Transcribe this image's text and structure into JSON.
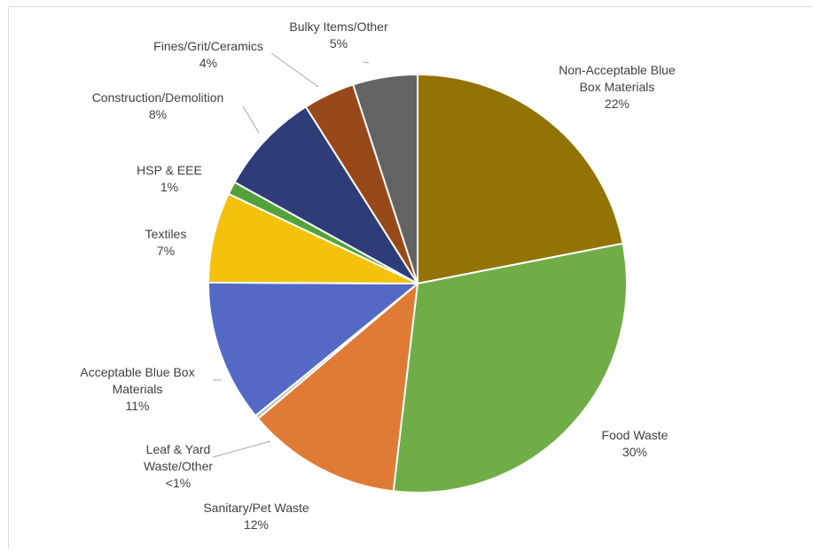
{
  "chart_data": {
    "type": "pie",
    "title": "",
    "slices": [
      {
        "name": "Non-Acceptable Blue Box Materials",
        "label_lines": [
          "Non-Acceptable Blue",
          "Box Materials"
        ],
        "pct_label": "22%",
        "value": 22,
        "color": "#937305"
      },
      {
        "name": "Food Waste",
        "label_lines": [
          "Food Waste"
        ],
        "pct_label": "30%",
        "value": 30,
        "color": "#70ad47"
      },
      {
        "name": "Sanitary/Pet Waste",
        "label_lines": [
          "Sanitary/Pet Waste"
        ],
        "pct_label": "12%",
        "value": 12,
        "color": "#e07b35"
      },
      {
        "name": "Leaf & Yard Waste/Other",
        "label_lines": [
          "Leaf & Yard",
          "Waste/Other"
        ],
        "pct_label": "<1%",
        "value": 0.3,
        "color": "#bfbfbf"
      },
      {
        "name": "Acceptable Blue Box Materials",
        "label_lines": [
          "Acceptable Blue Box",
          "Materials"
        ],
        "pct_label": "11%",
        "value": 11,
        "color": "#5469c6"
      },
      {
        "name": "Textiles",
        "label_lines": [
          "Textiles"
        ],
        "pct_label": "7%",
        "value": 7,
        "color": "#f4c20d"
      },
      {
        "name": "HSP & EEE",
        "label_lines": [
          "HSP & EEE"
        ],
        "pct_label": "1%",
        "value": 1,
        "color": "#52a23a"
      },
      {
        "name": "Construction/Demolition",
        "label_lines": [
          "Construction/Demolition"
        ],
        "pct_label": "8%",
        "value": 8,
        "color": "#2e3c7a"
      },
      {
        "name": "Fines/Grit/Ceramics",
        "label_lines": [
          "Fines/Grit/Ceramics"
        ],
        "pct_label": "4%",
        "value": 4,
        "color": "#984919"
      },
      {
        "name": "Bulky Items/Other",
        "label_lines": [
          "Bulky Items/Other"
        ],
        "pct_label": "5%",
        "value": 5,
        "color": "#636363"
      }
    ]
  }
}
